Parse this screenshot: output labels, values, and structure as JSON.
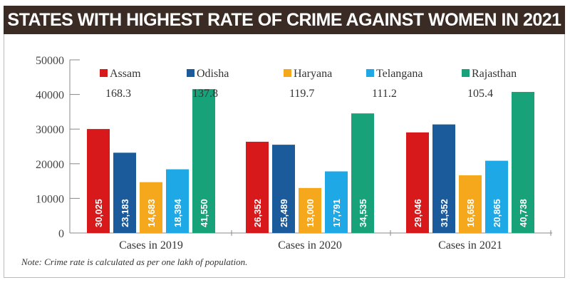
{
  "title": "STATES WITH HIGHEST RATE OF CRIME AGAINST WOMEN IN 2021",
  "note": "Note: Crime rate is calculated as per one lakh of population.",
  "chart_data": {
    "type": "bar",
    "title": "STATES WITH HIGHEST RATE OF CRIME AGAINST WOMEN IN 2021",
    "categories": [
      "Cases in 2019",
      "Cases in 2020",
      "Cases in 2021"
    ],
    "series": [
      {
        "name": "Assam",
        "crime_rate": "168.3",
        "color": "#d7191c",
        "values": [
          30025,
          26352,
          29046
        ]
      },
      {
        "name": "Odisha",
        "crime_rate": "137.8",
        "color": "#1b5a9b",
        "values": [
          23183,
          25489,
          31352
        ]
      },
      {
        "name": "Haryana",
        "crime_rate": "119.7",
        "color": "#f5a81c",
        "values": [
          14683,
          13000,
          16658
        ]
      },
      {
        "name": "Telangana",
        "crime_rate": "111.2",
        "color": "#1ea9e6",
        "values": [
          18394,
          17791,
          20865
        ]
      },
      {
        "name": "Rajasthan",
        "crime_rate": "105.4",
        "color": "#17a27a",
        "values": [
          41550,
          34535,
          40738
        ]
      }
    ],
    "yticks": [
      0,
      10000,
      20000,
      30000,
      40000,
      50000
    ],
    "ylim": [
      0,
      50000
    ],
    "xlabel": "",
    "ylabel": "",
    "grid": false,
    "legend_placement": "top"
  }
}
